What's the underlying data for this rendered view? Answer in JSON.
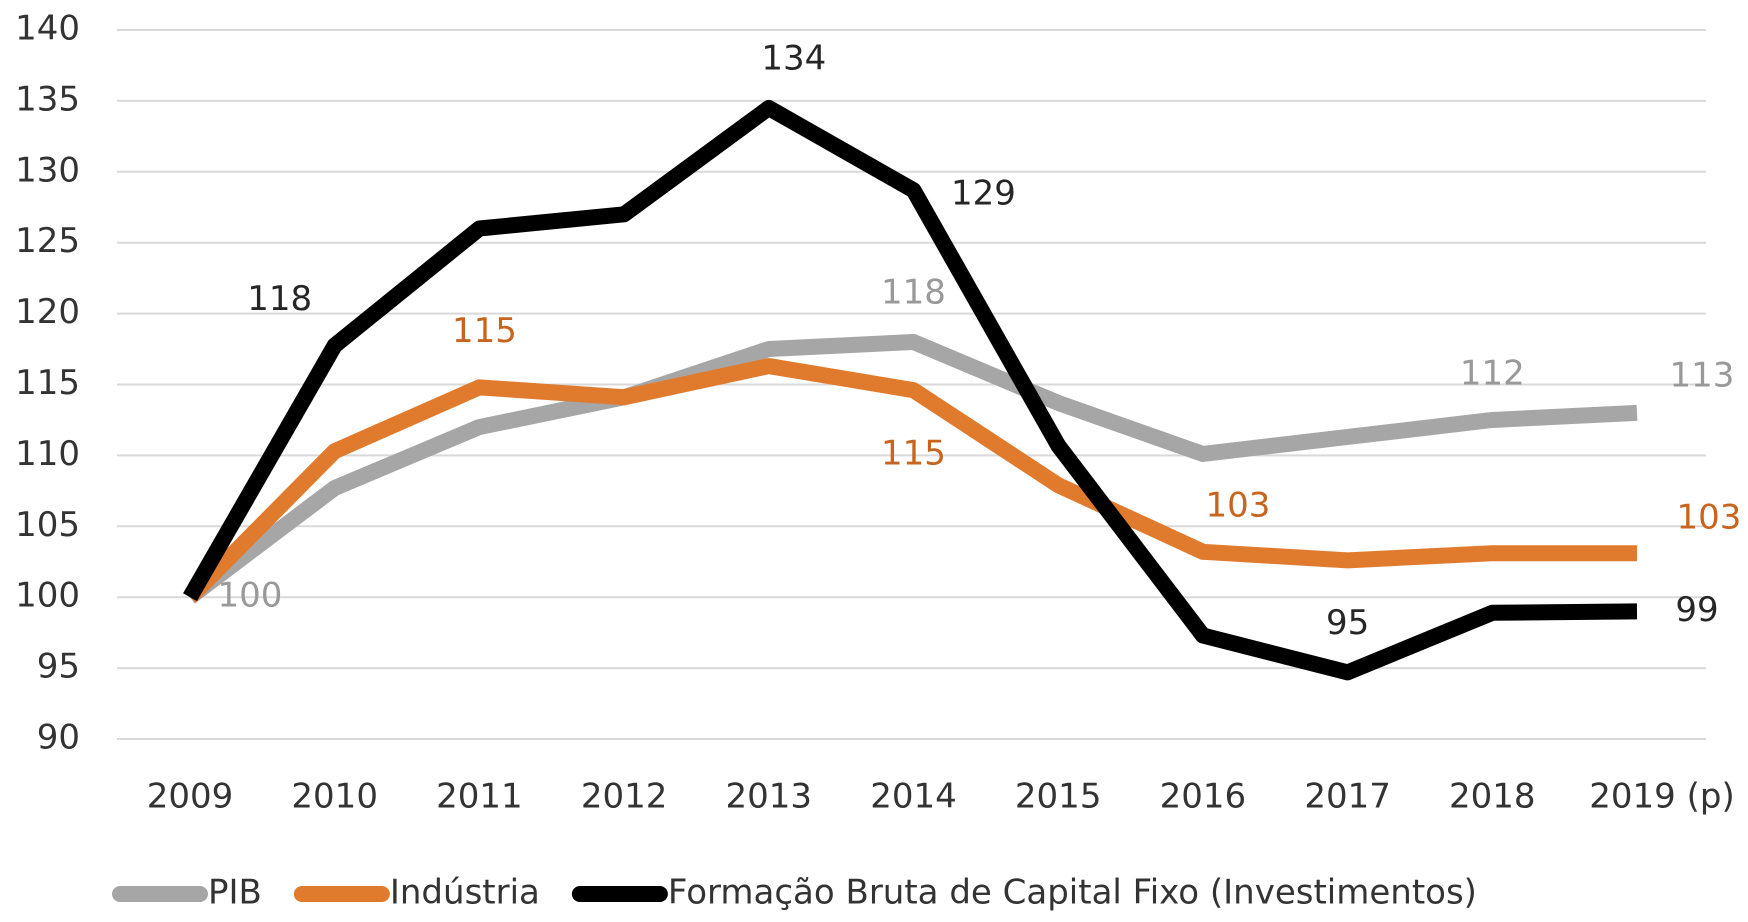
{
  "chart_data": {
    "type": "line",
    "categories": [
      "2009",
      "2010",
      "2011",
      "2012",
      "2013",
      "2014",
      "2015",
      "2016",
      "2017",
      "2018",
      "2019 (p)"
    ],
    "series": [
      {
        "name": "PIB",
        "color": "#a6a6a6",
        "values": [
          100,
          107.7,
          112.0,
          114.1,
          117.5,
          118.0,
          113.7,
          110.1,
          111.3,
          112.5,
          113.0
        ],
        "value_labels": [
          "100",
          null,
          null,
          null,
          null,
          "118",
          null,
          null,
          null,
          "112",
          "113"
        ]
      },
      {
        "name": "Indústria",
        "color": "#e07b2e",
        "values": [
          100,
          110.3,
          114.8,
          114.1,
          116.3,
          114.6,
          107.9,
          103.2,
          102.6,
          103.1,
          103.1
        ],
        "value_labels": [
          null,
          null,
          "115",
          null,
          null,
          "115",
          null,
          "103",
          null,
          null,
          "103"
        ]
      },
      {
        "name": "Formação Bruta de Capital Fixo (Investimentos)",
        "color": "#000000",
        "values": [
          100,
          117.75,
          126.0,
          127.0,
          134.5,
          128.7,
          110.7,
          97.3,
          94.7,
          98.9,
          99
        ],
        "value_labels": [
          null,
          "118",
          null,
          null,
          "134",
          "129",
          null,
          null,
          "95",
          null,
          "99"
        ]
      }
    ],
    "ylim": [
      90,
      140
    ],
    "yticks": [
      90,
      95,
      100,
      105,
      110,
      115,
      120,
      125,
      130,
      135,
      140
    ],
    "grid": true,
    "legend": "bottom"
  }
}
